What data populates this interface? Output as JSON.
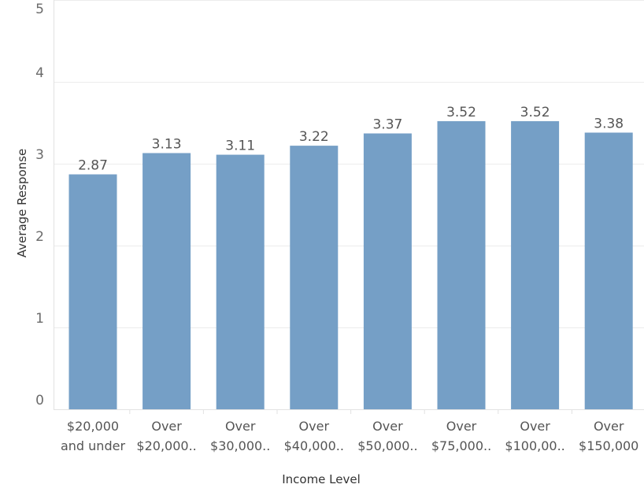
{
  "chart_data": {
    "type": "bar",
    "xlabel": "Income Level",
    "ylabel": "Average Response",
    "ylim": [
      0,
      5
    ],
    "yticks": [
      0,
      1,
      2,
      3,
      4,
      5
    ],
    "grid": true,
    "bar_color": "#759fc6",
    "categories": [
      [
        "$20,000",
        "and under"
      ],
      [
        "Over",
        "$20,000.."
      ],
      [
        "Over",
        "$30,000.."
      ],
      [
        "Over",
        "$40,000.."
      ],
      [
        "Over",
        "$50,000.."
      ],
      [
        "Over",
        "$75,000.."
      ],
      [
        "Over",
        "$100,00.."
      ],
      [
        "Over",
        "$150,000"
      ]
    ],
    "values": [
      2.87,
      3.13,
      3.11,
      3.22,
      3.37,
      3.52,
      3.52,
      3.38
    ],
    "data_labels": [
      "2.87",
      "3.13",
      "3.11",
      "3.22",
      "3.37",
      "3.52",
      "3.52",
      "3.38"
    ]
  }
}
